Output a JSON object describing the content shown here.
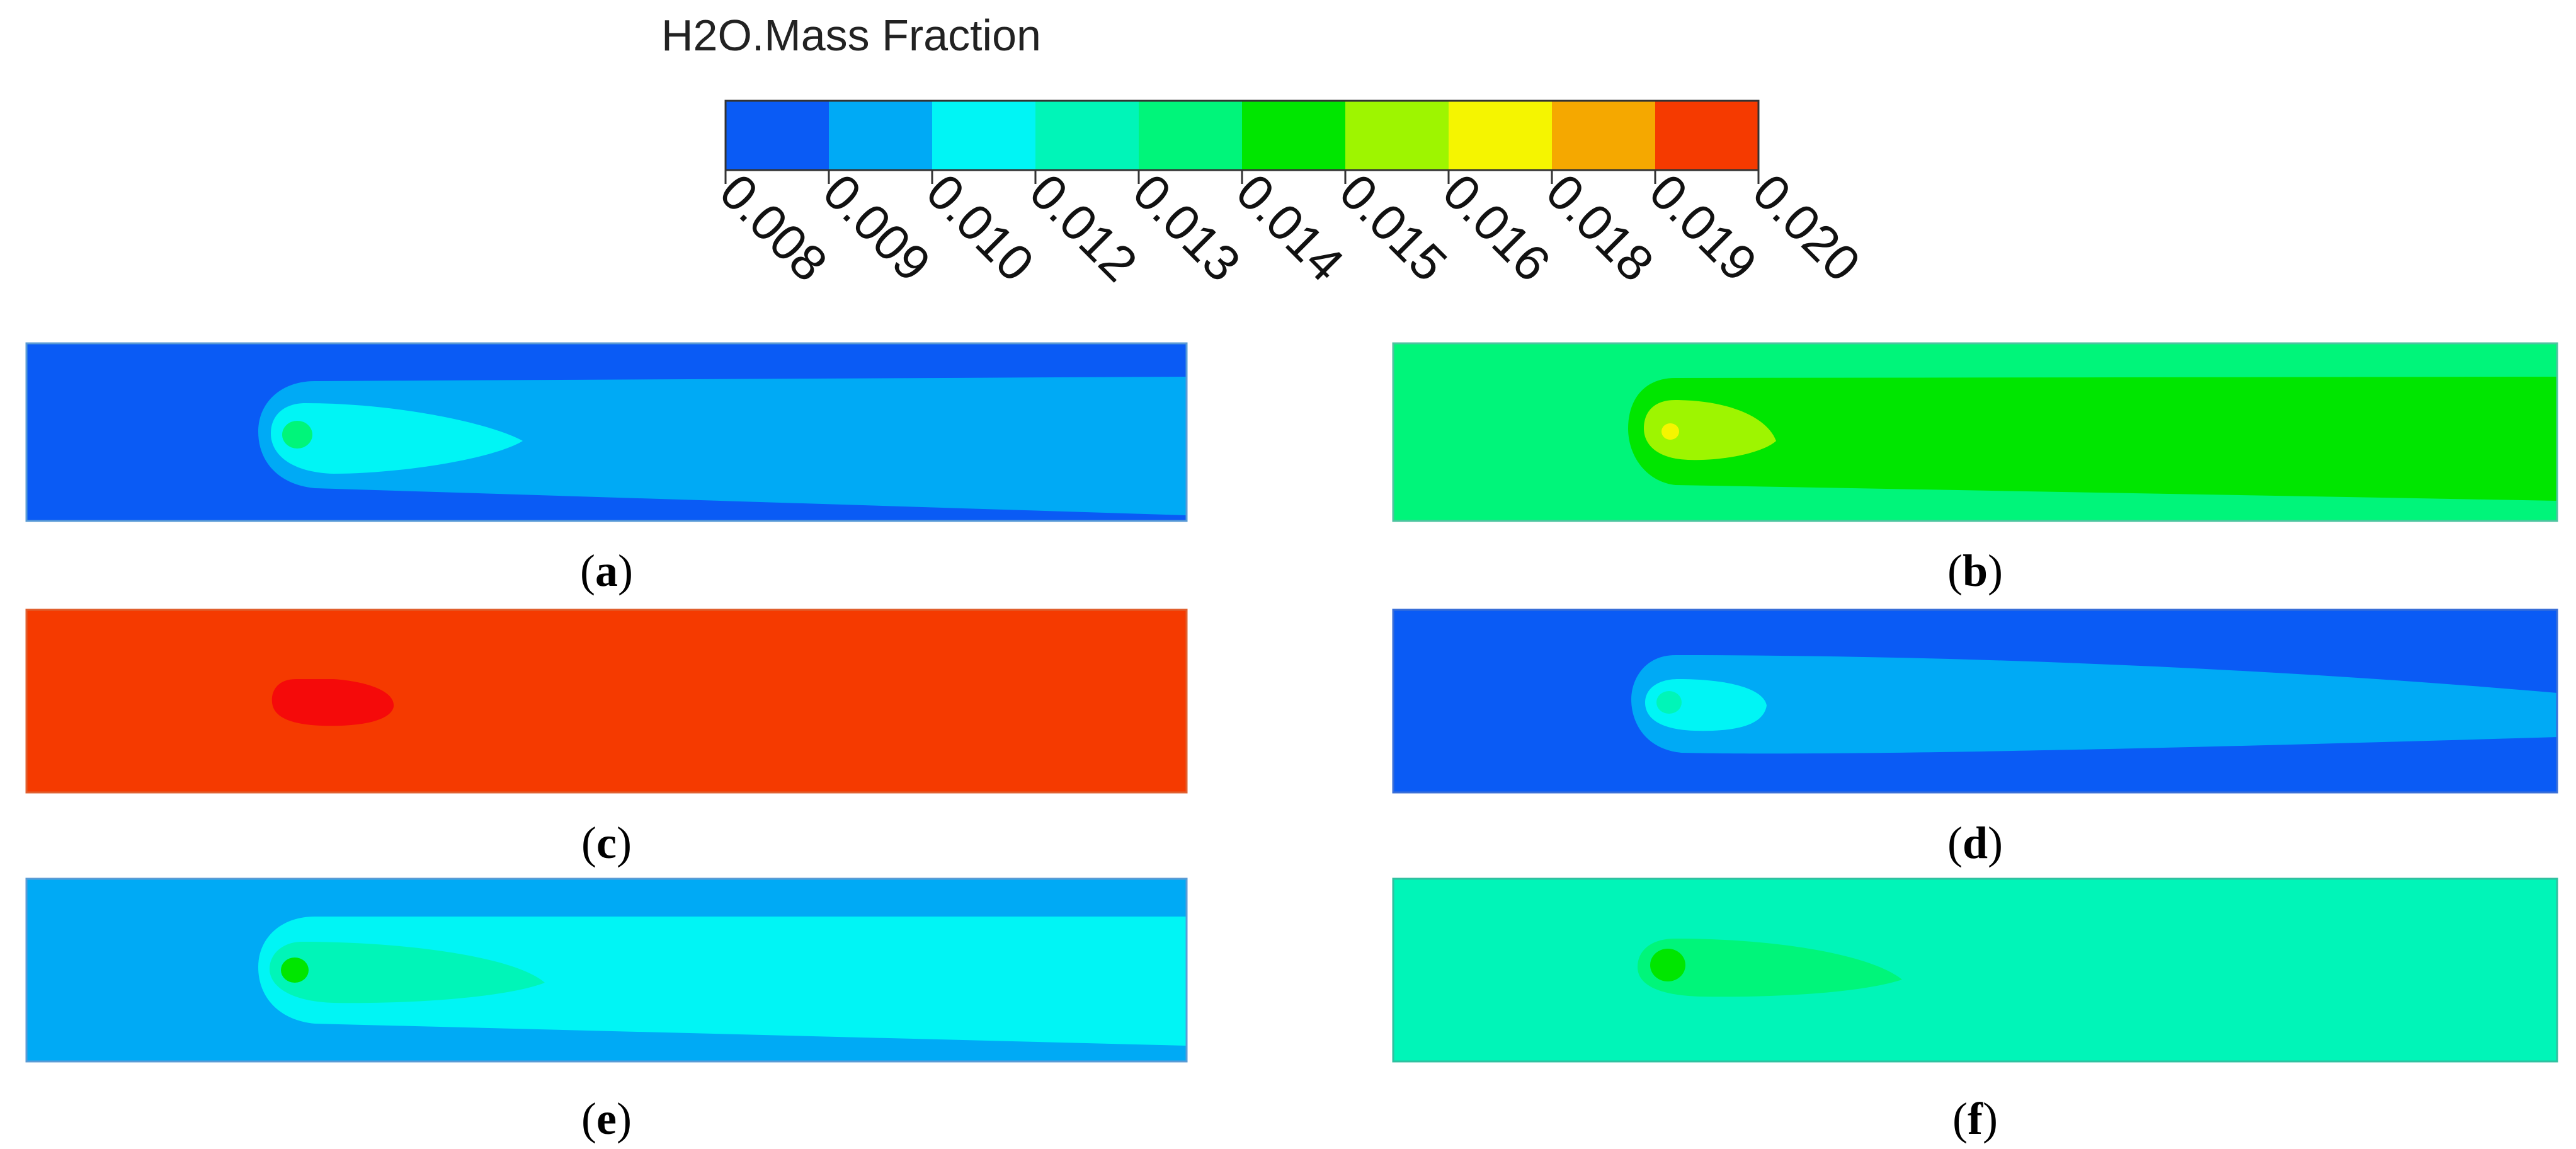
{
  "legend": {
    "title": "H2O.Mass Fraction",
    "tick_labels": [
      "0.008",
      "0.009",
      "0.010",
      "0.012",
      "0.013",
      "0.014",
      "0.015",
      "0.016",
      "0.018",
      "0.019",
      "0.020"
    ],
    "band_colors": [
      "#0a5bf5",
      "#00aaf5",
      "#00f5f5",
      "#00f5b8",
      "#00f57a",
      "#00e600",
      "#9ef500",
      "#f5f500",
      "#f5a800",
      "#f53a00"
    ]
  },
  "panels": [
    {
      "letter": "a",
      "caption_open": "(",
      "caption_close": ")",
      "colors": {
        "background": "#0a5bf5",
        "tail": "#00aaf5",
        "head": "#00f5f5",
        "core": "#00f57a"
      }
    },
    {
      "letter": "b",
      "caption_open": "(",
      "caption_close": ")",
      "colors": {
        "background": "#00f57a",
        "tail": "#00e600",
        "head": "#9ef500",
        "core": "#f5f500"
      }
    },
    {
      "letter": "c",
      "caption_open": "(",
      "caption_close": ")",
      "colors": {
        "background": "#f53a00",
        "head": "#f50a0a"
      }
    },
    {
      "letter": "d",
      "caption_open": "(",
      "caption_close": ")",
      "colors": {
        "background": "#0a5bf5",
        "tail": "#00aaf5",
        "head": "#00f5f5",
        "core": "#00f5b8"
      }
    },
    {
      "letter": "e",
      "caption_open": "(",
      "caption_close": ")",
      "colors": {
        "background": "#00aaf5",
        "tail": "#00f5f5",
        "head": "#00f5b8",
        "core": "#00e600"
      }
    },
    {
      "letter": "f",
      "caption_open": "(",
      "caption_close": ")",
      "colors": {
        "background": "#00f5b8",
        "head": "#00f57a",
        "core": "#00e600"
      }
    }
  ]
}
